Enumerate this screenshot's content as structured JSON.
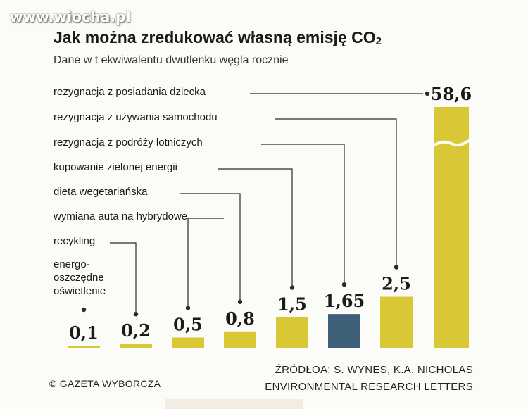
{
  "watermark": "www.wiocha.pl",
  "title": "Jak można zredukować własną emisję CO",
  "title_sub": "2",
  "subtitle": "Dane w t ekwiwalentu dwutlenku węgla rocznie",
  "copyright": "© GAZETA WYBORCZA",
  "source_line1": "ŹRÓDŁOA: S. WYNES, K.A. NICHOLAS",
  "source_line2": "ENVIRONMENTAL RESEARCH LETTERS",
  "colors": {
    "bar": "#d9c736",
    "highlight": "#3d5f78",
    "leader": "#2a2a2a"
  },
  "chart_data": {
    "type": "bar",
    "title": "Jak można zredukować własną emisję CO2",
    "subtitle": "Dane w t ekwiwalentu dwutlenku węgla rocznie",
    "categories": [
      "energo- oszczędne oświetlenie",
      "recykling",
      "wymiana auta na hybrydowe",
      "dieta wegetariańska",
      "kupowanie zielonej energii",
      "rezygnacja z podróży lotniczych",
      "rezygnacja z używania samochodu",
      "rezygnacja z posiadania dziecka"
    ],
    "label_lines": [
      [
        "energo-",
        "oszczędne",
        "oświetlenie"
      ],
      [
        "recykling"
      ],
      [
        "wymiana auta na hybrydowe"
      ],
      [
        "dieta wegetariańska"
      ],
      [
        "kupowanie zielonej energii"
      ],
      [
        "rezygnacja z podróży lotniczych"
      ],
      [
        "rezygnacja z używania samochodu"
      ],
      [
        "rezygnacja z posiadania dziecka"
      ]
    ],
    "values": [
      0.1,
      0.2,
      0.5,
      0.8,
      1.5,
      1.65,
      2.5,
      58.6
    ],
    "value_labels": [
      "0,1",
      "0,2",
      "0,5",
      "0,8",
      "1,5",
      "1,65",
      "2,5",
      "58,6"
    ],
    "highlighted_index": 5,
    "broken_axis_index": 7,
    "grid": false,
    "legend": "none"
  }
}
